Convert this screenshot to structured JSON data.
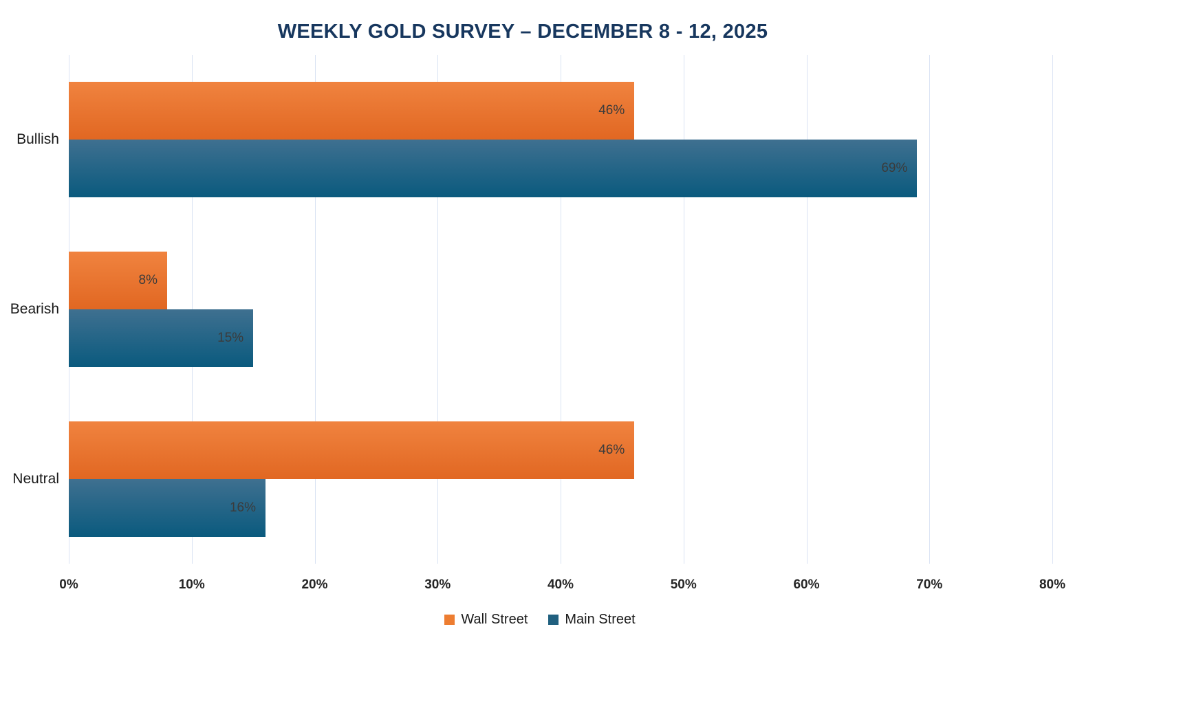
{
  "chart_data": {
    "type": "bar",
    "orientation": "horizontal",
    "title": "WEEKLY GOLD SURVEY – DECEMBER 8 - 12, 2025",
    "categories": [
      "Bullish",
      "Bearish",
      "Neutral"
    ],
    "series": [
      {
        "name": "Wall Street",
        "color": "#ED7D31",
        "color_top": "#F0833F",
        "color_bottom": "#E16722",
        "values": [
          46,
          8,
          46
        ]
      },
      {
        "name": "Main Street",
        "color": "#20607F",
        "color_top": "#3F7090",
        "color_bottom": "#0A5A7E",
        "values": [
          69,
          15,
          16
        ]
      }
    ],
    "value_labels": [
      [
        "46%",
        "8%",
        "46%"
      ],
      [
        "69%",
        "15%",
        "16%"
      ]
    ],
    "xlabel": "",
    "ylabel": "",
    "xlim": [
      0,
      80
    ],
    "x_ticks": [
      "0%",
      "10%",
      "20%",
      "30%",
      "40%",
      "50%",
      "60%",
      "70%",
      "80%"
    ],
    "x_tick_values": [
      0,
      10,
      20,
      30,
      40,
      50,
      60,
      70,
      80
    ],
    "value_suffix": "%",
    "grid": true,
    "gridline_color": "#d9e2f3",
    "legend_position": "bottom",
    "title_color": "#17375e"
  }
}
